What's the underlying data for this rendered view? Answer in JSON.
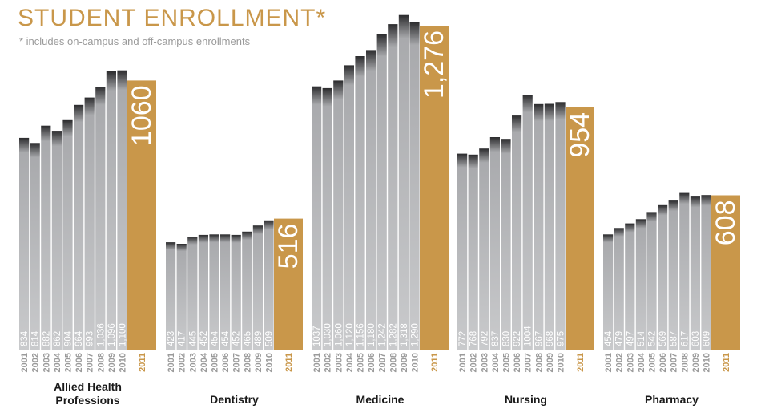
{
  "title": "STUDENT ENROLLMENT*",
  "subtitle": "* includes on-campus and off-campus enrollments",
  "colors": {
    "bar_top": "#2b2b2d",
    "bar_mid": "#a9aaad",
    "bar_bottom": "#c9cacc",
    "highlight": "#c9974a",
    "highlight_text": "#ffffff",
    "year_label": "#9a9a9a",
    "year_label_2011": "#c9974a",
    "value_label": "#ffffff"
  },
  "chart_data": {
    "type": "bar",
    "ylim": [
      0,
      1336
    ],
    "years": [
      "2001",
      "2002",
      "2003",
      "2004",
      "2005",
      "2006",
      "2007",
      "2008",
      "2009",
      "2010",
      "2011"
    ],
    "groups": [
      {
        "name": "Allied Health Professions",
        "name_lines": [
          "Allied Health",
          "Professions"
        ],
        "values": [
          834,
          814,
          882,
          862,
          904,
          964,
          993,
          1036,
          1096,
          1100,
          1060
        ],
        "labels": [
          "834",
          "814",
          "882",
          "862",
          "904",
          "964",
          "993",
          "1,036",
          "1,096",
          "1,100",
          "1060"
        ]
      },
      {
        "name": "Dentistry",
        "name_lines": [
          "Dentistry"
        ],
        "values": [
          423,
          417,
          445,
          452,
          454,
          454,
          452,
          465,
          489,
          509,
          516
        ],
        "labels": [
          "423",
          "417",
          "445",
          "452",
          "454",
          "454",
          "452",
          "465",
          "489",
          "509",
          "516"
        ]
      },
      {
        "name": "Medicine",
        "name_lines": [
          "Medicine"
        ],
        "values": [
          1037,
          1030,
          1060,
          1120,
          1156,
          1180,
          1242,
          1282,
          1318,
          1290,
          1276
        ],
        "labels": [
          "1037",
          "1,030",
          "1,060",
          "1,120",
          "1,156",
          "1,180",
          "1,242",
          "1,282",
          "1,318",
          "1,290",
          "1,276"
        ]
      },
      {
        "name": "Nursing",
        "name_lines": [
          "Nursing"
        ],
        "values": [
          772,
          768,
          792,
          837,
          830,
          922,
          1004,
          967,
          968,
          975,
          954
        ],
        "labels": [
          "772",
          "768",
          "792",
          "837",
          "830",
          "922",
          "1004",
          "967",
          "968",
          "975",
          "954"
        ]
      },
      {
        "name": "Pharmacy",
        "name_lines": [
          "Pharmacy"
        ],
        "values": [
          454,
          479,
          497,
          514,
          542,
          569,
          587,
          617,
          603,
          609,
          608
        ],
        "labels": [
          "454",
          "479",
          "497",
          "514",
          "542",
          "569",
          "587",
          "617",
          "603",
          "609",
          "608"
        ]
      }
    ]
  }
}
